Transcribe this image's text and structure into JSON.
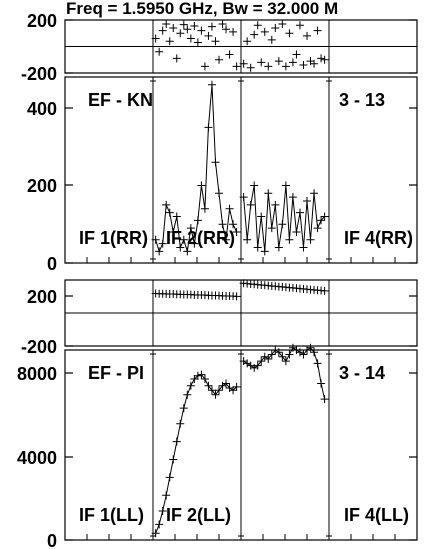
{
  "header": {
    "text": "Freq = 1.5950 GHz, Bw = 32.000 M"
  },
  "colors": {
    "foreground": "#000000",
    "background": "#ffffff"
  },
  "chart_data": [
    {
      "type": "scatter",
      "role": "phase",
      "baseline": "EF - KN",
      "ylim": [
        -200,
        200
      ],
      "yticks": [
        "200",
        "-200"
      ],
      "series": [
        {
          "if_index": 2,
          "x": [
            0.03,
            0.07,
            0.11,
            0.15,
            0.19,
            0.23,
            0.27,
            0.31,
            0.35,
            0.39,
            0.43,
            0.47,
            0.51,
            0.55,
            0.59,
            0.63,
            0.67,
            0.71,
            0.75,
            0.79,
            0.83,
            0.87,
            0.91,
            0.95
          ],
          "y": [
            60,
            -40,
            120,
            170,
            40,
            140,
            -90,
            100,
            165,
            130,
            60,
            155,
            30,
            120,
            -150,
            80,
            150,
            40,
            -100,
            170,
            130,
            -60,
            110,
            -150
          ]
        },
        {
          "if_index": 3,
          "x": [
            0.03,
            0.07,
            0.11,
            0.15,
            0.19,
            0.23,
            0.27,
            0.31,
            0.35,
            0.39,
            0.43,
            0.47,
            0.51,
            0.55,
            0.59,
            0.63,
            0.67,
            0.71,
            0.75,
            0.79,
            0.83,
            0.87,
            0.91,
            0.95
          ],
          "y": [
            -130,
            40,
            -160,
            90,
            160,
            -120,
            110,
            -150,
            50,
            140,
            -110,
            170,
            -150,
            100,
            -120,
            -60,
            160,
            -140,
            80,
            -110,
            -130,
            120,
            -90,
            -100
          ]
        }
      ]
    },
    {
      "type": "line",
      "role": "amplitude",
      "baseline": "EF - KN",
      "annotation": "3 - 13",
      "ylim": [
        0,
        480
      ],
      "yticks": [
        "0",
        "200",
        "400"
      ],
      "panel_labels": [
        "IF 1(RR)",
        "IF 2(RR)",
        "",
        "IF 4(RR)"
      ],
      "series": [
        {
          "if_index": 2,
          "x": [
            0.03,
            0.07,
            0.11,
            0.15,
            0.19,
            0.23,
            0.27,
            0.31,
            0.35,
            0.39,
            0.43,
            0.47,
            0.51,
            0.55,
            0.59,
            0.63,
            0.67,
            0.71,
            0.75,
            0.79,
            0.83,
            0.87,
            0.91,
            0.95
          ],
          "y": [
            60,
            30,
            50,
            150,
            130,
            80,
            120,
            40,
            60,
            30,
            90,
            50,
            110,
            200,
            140,
            350,
            460,
            260,
            180,
            100,
            60,
            140,
            100,
            80
          ]
        },
        {
          "if_index": 3,
          "x": [
            0.03,
            0.07,
            0.11,
            0.15,
            0.19,
            0.23,
            0.27,
            0.31,
            0.35,
            0.39,
            0.43,
            0.47,
            0.51,
            0.55,
            0.59,
            0.63,
            0.67,
            0.71,
            0.75,
            0.79,
            0.83,
            0.87,
            0.91,
            0.95
          ],
          "y": [
            170,
            60,
            150,
            200,
            40,
            120,
            30,
            180,
            90,
            150,
            40,
            100,
            200,
            60,
            170,
            80,
            130,
            40,
            160,
            60,
            180,
            90,
            110,
            120
          ]
        }
      ]
    },
    {
      "type": "scatter",
      "role": "phase",
      "baseline": "EF - PI",
      "ylim": [
        -200,
        200
      ],
      "yticks": [
        "200",
        "-200"
      ],
      "series": [
        {
          "if_index": 2,
          "x": [
            0.03,
            0.07,
            0.11,
            0.15,
            0.19,
            0.23,
            0.27,
            0.31,
            0.35,
            0.39,
            0.43,
            0.47,
            0.51,
            0.55,
            0.59,
            0.63,
            0.67,
            0.71,
            0.75,
            0.79,
            0.83,
            0.87,
            0.91,
            0.95
          ],
          "y": [
            118,
            117,
            117,
            116,
            115,
            115,
            114,
            113,
            112,
            112,
            111,
            110,
            109,
            109,
            108,
            107,
            106,
            106,
            105,
            104,
            103,
            103,
            102,
            101
          ]
        },
        {
          "if_index": 3,
          "x": [
            0.03,
            0.07,
            0.11,
            0.15,
            0.19,
            0.23,
            0.27,
            0.31,
            0.35,
            0.39,
            0.43,
            0.47,
            0.51,
            0.55,
            0.59,
            0.63,
            0.67,
            0.71,
            0.75,
            0.79,
            0.83,
            0.87,
            0.91,
            0.95
          ],
          "y": [
            180,
            178,
            176,
            174,
            172,
            170,
            168,
            166,
            164,
            162,
            160,
            158,
            156,
            154,
            152,
            150,
            148,
            146,
            144,
            142,
            140,
            138,
            136,
            134
          ]
        }
      ]
    },
    {
      "type": "line",
      "role": "amplitude",
      "baseline": "EF - PI",
      "annotation": "3 - 14",
      "ylim": [
        0,
        8500
      ],
      "yticks": [
        "0",
        "4000",
        "8000"
      ],
      "panel_labels": [
        "IF 1(LL)",
        "IF 2(LL)",
        "",
        "IF 4(LL)"
      ],
      "series": [
        {
          "if_index": 2,
          "x": [
            0.03,
            0.07,
            0.11,
            0.15,
            0.19,
            0.23,
            0.27,
            0.31,
            0.35,
            0.39,
            0.43,
            0.47,
            0.51,
            0.55,
            0.59,
            0.63,
            0.67,
            0.71,
            0.75,
            0.79,
            0.83,
            0.87,
            0.91,
            0.95
          ],
          "y": [
            300,
            700,
            1300,
            2000,
            2800,
            3600,
            4400,
            5200,
            5900,
            6500,
            6900,
            7200,
            7350,
            7400,
            7200,
            6900,
            6700,
            6500,
            6700,
            6900,
            7000,
            6800,
            6700,
            6850
          ]
        },
        {
          "if_index": 3,
          "x": [
            0.03,
            0.07,
            0.11,
            0.15,
            0.19,
            0.23,
            0.27,
            0.31,
            0.35,
            0.39,
            0.43,
            0.47,
            0.51,
            0.55,
            0.59,
            0.63,
            0.67,
            0.71,
            0.75,
            0.79,
            0.83,
            0.87,
            0.91,
            0.95
          ],
          "y": [
            8000,
            7900,
            7800,
            7700,
            7800,
            8000,
            8200,
            8100,
            8300,
            8500,
            8400,
            8200,
            8000,
            8300,
            8600,
            8500,
            8400,
            8300,
            8500,
            8600,
            8400,
            7900,
            7000,
            6300
          ]
        }
      ]
    }
  ]
}
